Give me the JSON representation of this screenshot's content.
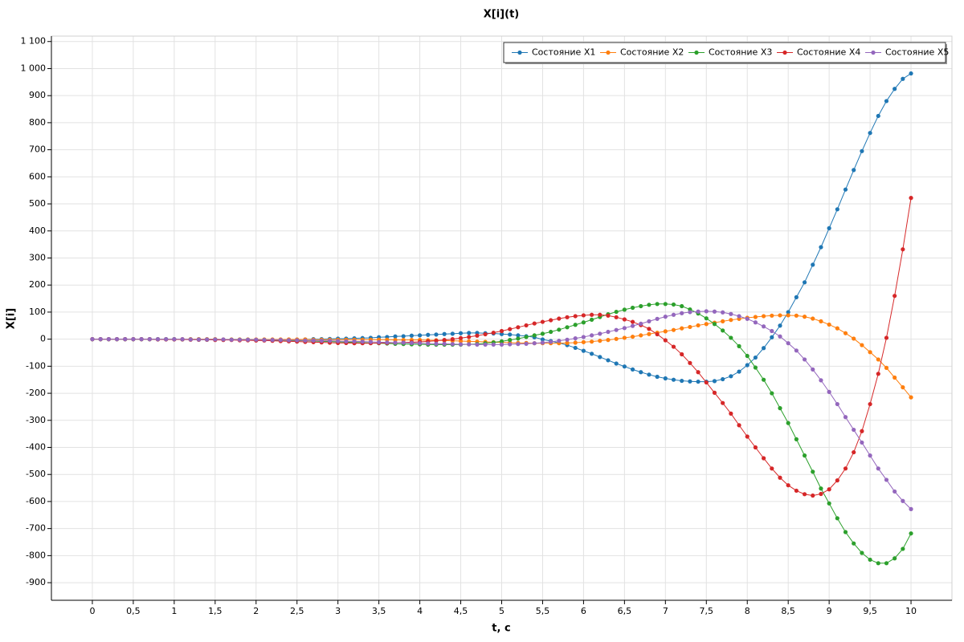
{
  "chart_data": {
    "type": "line",
    "title": "X[i](t)",
    "x_label": "t, c",
    "y_label": "X[i]",
    "legend": "upper right",
    "grid": true,
    "xlim": [
      -0.5,
      10.5
    ],
    "ylim": [
      -965,
      1120
    ],
    "xticks": [
      0,
      {
        "value": 0.5,
        "label": "0,5"
      },
      1,
      {
        "value": 1.5,
        "label": "1,5"
      },
      2,
      {
        "value": 2.5,
        "label": "2,5"
      },
      3,
      {
        "value": 3.5,
        "label": "3,5"
      },
      4,
      {
        "value": 4.5,
        "label": "4,5"
      },
      5,
      {
        "value": 5.5,
        "label": "5,5"
      },
      6,
      {
        "value": 6.5,
        "label": "6,5"
      },
      7,
      {
        "value": 7.5,
        "label": "7,5"
      },
      8,
      {
        "value": 8.5,
        "label": "8,5"
      },
      9,
      {
        "value": 9.5,
        "label": "9,5"
      },
      10
    ],
    "yticks": [
      -900,
      -800,
      -700,
      -600,
      -500,
      -400,
      -300,
      -200,
      -100,
      0,
      100,
      200,
      300,
      400,
      500,
      600,
      700,
      800,
      900,
      {
        "value": 1000,
        "label": "1 000"
      },
      {
        "value": 1100,
        "label": "1 100"
      }
    ],
    "x": [
      0,
      0.1,
      0.2,
      0.3,
      0.4,
      0.5,
      0.6,
      0.7,
      0.8,
      0.9,
      1,
      1.1,
      1.2,
      1.3,
      1.4,
      1.5,
      1.6,
      1.7,
      1.8,
      1.9,
      2,
      2.1,
      2.2,
      2.3,
      2.4,
      2.5,
      2.6,
      2.7,
      2.8,
      2.9,
      3,
      3.1,
      3.2,
      3.3,
      3.4,
      3.5,
      3.6,
      3.7,
      3.8,
      3.9,
      4,
      4.1,
      4.2,
      4.3,
      4.4,
      4.5,
      4.6,
      4.7,
      4.8,
      4.9,
      5,
      5.1,
      5.2,
      5.3,
      5.4,
      5.5,
      5.6,
      5.7,
      5.8,
      5.9,
      6,
      6.1,
      6.2,
      6.3,
      6.4,
      6.5,
      6.6,
      6.7,
      6.8,
      6.9,
      7,
      7.1,
      7.2,
      7.3,
      7.4,
      7.5,
      7.6,
      7.7,
      7.8,
      7.9,
      8,
      8.1,
      8.2,
      8.3,
      8.4,
      8.5,
      8.6,
      8.7,
      8.8,
      8.9,
      9,
      9.1,
      9.2,
      9.3,
      9.4,
      9.5,
      9.6,
      9.7,
      9.8,
      9.9,
      10
    ],
    "series": [
      {
        "name": "Состояние X1",
        "color": "#1f77b4",
        "values": [
          0,
          0,
          0,
          0,
          0,
          0,
          0,
          0,
          -1,
          -1,
          -1,
          -1,
          -1,
          -2,
          -2,
          -2,
          -2,
          -2,
          -3,
          -3,
          -3,
          -3,
          -3,
          -2,
          -2,
          -2,
          -1,
          0,
          0,
          1,
          2,
          2,
          3,
          4,
          5,
          7,
          8,
          10,
          11,
          13,
          14,
          16,
          17,
          19,
          20,
          22,
          23,
          23,
          22,
          21,
          19,
          17,
          14,
          11,
          7,
          -1,
          -7,
          -14,
          -22,
          -32,
          -43,
          -54,
          -66,
          -78,
          -90,
          -101,
          -112,
          -122,
          -131,
          -139,
          -145,
          -150,
          -154,
          -156,
          -157,
          -157,
          -155,
          -148,
          -137,
          -120,
          -96,
          -68,
          -33,
          7,
          50,
          100,
          155,
          210,
          275,
          340,
          410,
          480,
          553,
          625,
          695,
          762,
          825,
          880,
          925,
          962,
          982
        ]
      },
      {
        "name": "Состояние X2",
        "color": "#ff7f0e",
        "values": [
          0,
          0,
          0,
          0,
          0,
          0,
          0,
          0,
          0,
          0,
          0,
          0,
          0,
          0,
          0,
          0,
          -1,
          -1,
          -1,
          -1,
          -1,
          -1,
          -1,
          -1,
          -1,
          -1,
          -1,
          -2,
          -2,
          -2,
          -2,
          -2,
          -2,
          -2,
          -2,
          -2,
          -2,
          -3,
          -3,
          -3,
          -3,
          -4,
          -4,
          -5,
          -6,
          -7,
          -8,
          -9,
          -10,
          -11,
          -12,
          -13,
          -14,
          -14,
          -15,
          -15,
          -15,
          -15,
          -14,
          -13,
          -11,
          -9,
          -6,
          -3,
          1,
          5,
          9,
          14,
          19,
          24,
          29,
          34,
          40,
          45,
          51,
          56,
          61,
          66,
          71,
          75,
          79,
          82,
          85,
          87,
          88,
          88,
          87,
          83,
          76,
          66,
          54,
          40,
          22,
          2,
          -22,
          -48,
          -75,
          -106,
          -142,
          -178,
          -215
        ]
      },
      {
        "name": "Состояние X3",
        "color": "#2ca02c",
        "values": [
          0,
          0,
          0,
          0,
          0,
          0,
          0,
          0,
          0,
          0,
          0,
          -1,
          -1,
          -1,
          -1,
          -1,
          -2,
          -2,
          -2,
          -2,
          -3,
          -3,
          -4,
          -4,
          -5,
          -6,
          -6,
          -7,
          -8,
          -9,
          -10,
          -11,
          -12,
          -13,
          -14,
          -15,
          -16,
          -17,
          -18,
          -19,
          -19,
          -20,
          -20,
          -20,
          -20,
          -20,
          -19,
          -18,
          -15,
          -12,
          -8,
          -3,
          2,
          8,
          14,
          20,
          27,
          35,
          44,
          53,
          62,
          72,
          82,
          92,
          101,
          109,
          116,
          122,
          127,
          130,
          130,
          128,
          122,
          110,
          95,
          77,
          56,
          32,
          5,
          -26,
          -62,
          -105,
          -150,
          -200,
          -255,
          -310,
          -370,
          -430,
          -490,
          -552,
          -607,
          -662,
          -713,
          -755,
          -790,
          -815,
          -828,
          -828,
          -810,
          -775,
          -718
        ]
      },
      {
        "name": "Состояние X4",
        "color": "#d62728",
        "values": [
          0,
          0,
          0,
          0,
          0,
          0,
          0,
          0,
          -1,
          -1,
          -1,
          -1,
          -2,
          -2,
          -2,
          -3,
          -3,
          -3,
          -4,
          -4,
          -5,
          -5,
          -6,
          -7,
          -8,
          -9,
          -10,
          -11,
          -12,
          -13,
          -14,
          -14,
          -15,
          -15,
          -15,
          -14,
          -14,
          -13,
          -12,
          -11,
          -10,
          -8,
          -6,
          -3,
          0,
          4,
          8,
          13,
          18,
          24,
          30,
          37,
          44,
          51,
          58,
          64,
          70,
          76,
          81,
          85,
          88,
          90,
          90,
          87,
          81,
          73,
          64,
          52,
          38,
          18,
          -4,
          -28,
          -56,
          -88,
          -122,
          -160,
          -198,
          -236,
          -275,
          -318,
          -360,
          -400,
          -440,
          -478,
          -512,
          -540,
          -560,
          -573,
          -578,
          -572,
          -555,
          -522,
          -478,
          -418,
          -340,
          -240,
          -128,
          5,
          160,
          332,
          522
        ]
      },
      {
        "name": "Состояние X5",
        "color": "#9467bd",
        "values": [
          0,
          0,
          0,
          0,
          0,
          0,
          0,
          0,
          0,
          0,
          0,
          0,
          -1,
          -1,
          -1,
          -1,
          -1,
          -2,
          -2,
          -2,
          -2,
          -3,
          -3,
          -3,
          -4,
          -4,
          -5,
          -5,
          -6,
          -6,
          -7,
          -8,
          -8,
          -9,
          -10,
          -11,
          -12,
          -13,
          -13,
          -14,
          -15,
          -16,
          -17,
          -17,
          -18,
          -19,
          -19,
          -20,
          -20,
          -20,
          -20,
          -19,
          -18,
          -17,
          -15,
          -13,
          -10,
          -6,
          -2,
          3,
          8,
          14,
          20,
          27,
          34,
          41,
          49,
          57,
          66,
          75,
          83,
          90,
          96,
          100,
          102,
          103,
          102,
          99,
          93,
          85,
          75,
          62,
          47,
          30,
          10,
          -15,
          -42,
          -75,
          -112,
          -152,
          -195,
          -240,
          -288,
          -335,
          -382,
          -430,
          -478,
          -520,
          -563,
          -598,
          -628
        ]
      }
    ]
  }
}
